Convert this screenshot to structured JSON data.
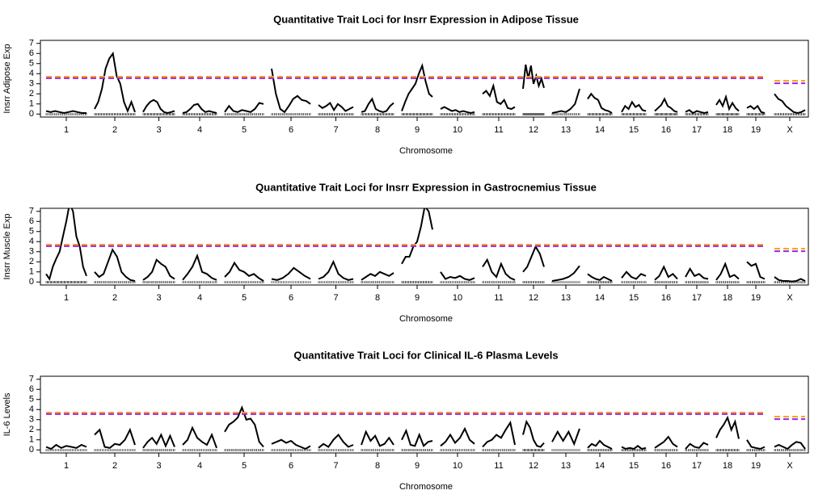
{
  "chart_data": [
    {
      "type": "line",
      "title": "Quantitative Trait Loci for Insrr Expression in Adipose Tissue",
      "xlabel": "Chromosome",
      "ylabel": "Insrr Adipose Exp",
      "categories": [
        "1",
        "2",
        "3",
        "4",
        "5",
        "6",
        "7",
        "8",
        "9",
        "10",
        "11",
        "12",
        "13",
        "14",
        "15",
        "16",
        "17",
        "18",
        "19",
        "X"
      ],
      "ylim": [
        -0.3,
        7.3
      ],
      "yticks": [
        0,
        1,
        2,
        3,
        4,
        5,
        6,
        7
      ],
      "thresholds": [
        {
          "color": "#ffa500",
          "autosome": 3.7,
          "x": 3.3
        },
        {
          "color": "#a020f0",
          "autosome": 3.55,
          "x": 3.05
        }
      ],
      "lod": [
        [
          0.3,
          0.2,
          0.3,
          0.2,
          0.1,
          0.2,
          0.3,
          0.2,
          0.1,
          0.1
        ],
        [
          0.5,
          1.2,
          2.5,
          4.5,
          5.5,
          6.0,
          3.8,
          3.0,
          1.2,
          0.3,
          1.2,
          0.2
        ],
        [
          0.2,
          0.8,
          1.2,
          1.4,
          1.2,
          0.5,
          0.2,
          0.1,
          0.2,
          0.3
        ],
        [
          0.1,
          0.2,
          0.5,
          0.9,
          1.0,
          0.5,
          0.2,
          0.3,
          0.2,
          0.1
        ],
        [
          0.2,
          0.8,
          0.3,
          0.2,
          0.4,
          0.3,
          0.2,
          0.5,
          1.1,
          1.0
        ],
        [
          4.5,
          2.0,
          0.5,
          0.2,
          0.8,
          1.5,
          1.8,
          1.4,
          1.3,
          1.0
        ],
        [
          0.9,
          0.6,
          0.8,
          1.1,
          0.4,
          1.0,
          0.7,
          0.3,
          0.5,
          0.7
        ],
        [
          0.2,
          0.3,
          1.0,
          1.5,
          0.5,
          0.3,
          0.2,
          0.3,
          0.8,
          1.1
        ],
        [
          0.3,
          1.2,
          2.0,
          2.5,
          3.0,
          4.0,
          4.8,
          3.2,
          2.0,
          1.7
        ],
        [
          0.5,
          0.7,
          0.5,
          0.3,
          0.4,
          0.2,
          0.3,
          0.2,
          0.1,
          0.2
        ],
        [
          2.0,
          2.3,
          1.8,
          2.8,
          1.2,
          1.0,
          1.4,
          0.6,
          0.5,
          0.7
        ],
        [
          2.5,
          4.9,
          3.5,
          4.8,
          3.0,
          3.8,
          2.8,
          3.5,
          2.6
        ],
        [
          0.1,
          0.2,
          0.3,
          0.2,
          0.5,
          1.0,
          2.5
        ],
        [
          1.5,
          2.0,
          1.6,
          1.4,
          0.6,
          0.4,
          0.3,
          0.1
        ],
        [
          0.2,
          0.8,
          0.5,
          1.2,
          0.7,
          0.9,
          0.4,
          0.3
        ],
        [
          0.3,
          0.6,
          0.9,
          1.5,
          0.8,
          0.6,
          0.3,
          0.2
        ],
        [
          0.2,
          0.4,
          0.1,
          0.3,
          0.2,
          0.1,
          0.2
        ],
        [
          0.9,
          1.4,
          0.8,
          1.7,
          0.5,
          1.1,
          0.6,
          0.3
        ],
        [
          0.6,
          0.8,
          0.5,
          0.8,
          0.2,
          0.1
        ],
        [
          2.0,
          1.5,
          1.3,
          0.8,
          0.5,
          0.2,
          0.1,
          0.2,
          0.4
        ]
      ]
    },
    {
      "type": "line",
      "title": "Quantitative Trait Loci for Insrr Expression in Gastrocnemius Tissue",
      "xlabel": "Chromosome",
      "ylabel": "Insrr Muscle Exp",
      "categories": [
        "1",
        "2",
        "3",
        "4",
        "5",
        "6",
        "7",
        "8",
        "9",
        "10",
        "11",
        "12",
        "13",
        "14",
        "15",
        "16",
        "17",
        "18",
        "19",
        "X"
      ],
      "ylim": [
        -0.3,
        7.3
      ],
      "yticks": [
        0,
        1,
        2,
        3,
        4,
        5,
        6,
        7
      ],
      "thresholds": [
        {
          "color": "#ffa500",
          "autosome": 3.7,
          "x": 3.3
        },
        {
          "color": "#a020f0",
          "autosome": 3.55,
          "x": 3.05
        }
      ],
      "lod": [
        [
          0.8,
          0.3,
          1.5,
          2.3,
          3.0,
          4.5,
          6.0,
          7.8,
          7.0,
          4.5,
          3.5,
          1.5,
          0.6
        ],
        [
          1.0,
          0.5,
          0.8,
          2.0,
          3.2,
          2.5,
          1.0,
          0.5,
          0.2,
          0.1
        ],
        [
          0.2,
          0.5,
          1.0,
          2.2,
          1.8,
          1.5,
          0.6,
          0.3
        ],
        [
          0.2,
          0.8,
          1.5,
          2.6,
          1.0,
          0.8,
          0.4,
          0.2
        ],
        [
          0.5,
          1.0,
          1.9,
          1.2,
          1.0,
          0.6,
          0.8,
          0.4,
          0.1
        ],
        [
          0.3,
          0.2,
          0.4,
          0.8,
          1.4,
          1.0,
          0.6,
          0.3
        ],
        [
          0.3,
          0.5,
          1.0,
          2.0,
          0.8,
          0.4,
          0.2,
          0.3
        ],
        [
          0.2,
          0.5,
          0.8,
          0.6,
          1.0,
          0.8,
          0.6,
          0.9
        ],
        [
          1.8,
          2.5,
          2.5,
          3.5,
          4.0,
          5.5,
          7.5,
          7.0,
          5.2
        ],
        [
          1.0,
          0.3,
          0.5,
          0.4,
          0.6,
          0.3,
          0.2,
          0.4
        ],
        [
          1.5,
          2.2,
          1.0,
          0.5,
          1.8,
          0.8,
          0.4,
          0.2
        ],
        [
          1.0,
          1.5,
          2.5,
          3.5,
          2.8,
          1.5
        ],
        [
          0.1,
          0.2,
          0.3,
          0.5,
          0.9,
          1.6
        ],
        [
          0.8,
          0.5,
          0.3,
          0.2,
          0.5,
          0.3,
          0.1
        ],
        [
          0.4,
          1.0,
          0.5,
          0.3,
          0.8,
          0.6
        ],
        [
          0.2,
          0.6,
          1.5,
          0.5,
          0.8,
          0.3
        ],
        [
          0.5,
          1.3,
          0.6,
          0.8,
          0.4,
          0.3
        ],
        [
          0.2,
          0.8,
          1.8,
          0.5,
          0.7,
          0.3
        ],
        [
          2.0,
          1.6,
          1.8,
          0.5,
          0.3
        ],
        [
          0.5,
          0.2,
          0.1,
          0.1,
          0.05,
          0.1,
          0.3,
          0.1
        ]
      ]
    },
    {
      "type": "line",
      "title": "Quantitative Trait Loci for Clinical IL-6 Plasma Levels",
      "xlabel": "Chromosome",
      "ylabel": "IL-6 Levels",
      "categories": [
        "1",
        "2",
        "3",
        "4",
        "5",
        "6",
        "7",
        "8",
        "9",
        "10",
        "11",
        "12",
        "13",
        "14",
        "15",
        "16",
        "17",
        "18",
        "19",
        "X"
      ],
      "ylim": [
        -0.3,
        7.3
      ],
      "yticks": [
        0,
        1,
        2,
        3,
        4,
        5,
        6,
        7
      ],
      "thresholds": [
        {
          "color": "#ffa500",
          "autosome": 3.7,
          "x": 3.3
        },
        {
          "color": "#a020f0",
          "autosome": 3.55,
          "x": 3.05
        }
      ],
      "lod": [
        [
          0.3,
          0.1,
          0.5,
          0.2,
          0.4,
          0.3,
          0.2,
          0.5,
          0.3
        ],
        [
          1.5,
          2.0,
          0.3,
          0.2,
          0.6,
          0.5,
          1.0,
          2.0,
          0.5
        ],
        [
          0.2,
          0.8,
          1.2,
          0.6,
          1.5,
          0.4,
          1.4,
          0.3
        ],
        [
          0.5,
          1.0,
          2.2,
          1.2,
          0.8,
          0.5,
          1.5,
          0.2
        ],
        [
          1.8,
          2.5,
          2.8,
          3.2,
          4.2,
          3.0,
          3.1,
          2.5,
          0.8,
          0.3
        ],
        [
          0.6,
          0.8,
          1.0,
          0.7,
          0.9,
          0.5,
          0.3,
          0.1,
          0.4
        ],
        [
          0.2,
          0.6,
          0.3,
          1.0,
          1.5,
          0.8,
          0.3,
          0.5
        ],
        [
          0.5,
          1.8,
          0.9,
          1.4,
          0.4,
          0.6,
          1.2,
          0.5
        ],
        [
          1.0,
          1.9,
          0.5,
          0.4,
          1.5,
          0.4,
          0.8,
          0.9
        ],
        [
          0.4,
          0.8,
          1.5,
          0.7,
          1.2,
          2.1,
          1.0,
          0.6
        ],
        [
          0.3,
          0.8,
          1.0,
          1.5,
          1.2,
          2.0,
          2.7,
          0.5
        ],
        [
          1.5,
          2.8,
          2.2,
          1.0,
          0.4,
          0.3,
          0.7
        ],
        [
          0.8,
          1.8,
          0.9,
          1.8,
          0.6,
          2.1
        ],
        [
          0.2,
          0.6,
          0.4,
          0.9,
          0.5,
          0.3,
          0.1
        ],
        [
          0.3,
          0.1,
          0.2,
          0.1,
          0.4,
          0.1,
          0.2
        ],
        [
          0.2,
          0.5,
          0.8,
          1.3,
          0.6,
          0.3
        ],
        [
          0.1,
          0.6,
          0.3,
          0.2,
          0.7,
          0.5
        ],
        [
          1.2,
          2.0,
          2.5,
          3.2,
          2.0,
          2.8,
          1.1
        ],
        [
          1.0,
          0.3,
          0.2,
          0.1,
          0.3
        ],
        [
          0.3,
          0.5,
          0.3,
          0.1,
          0.5,
          0.8,
          0.7,
          0.1
        ]
      ]
    }
  ]
}
